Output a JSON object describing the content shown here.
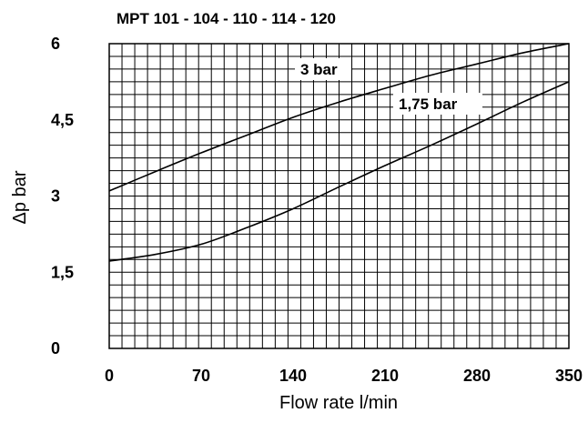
{
  "chart_data": {
    "type": "line",
    "title": "MPT 101 - 104 - 110 - 114 - 120",
    "xlabel": "Flow rate l/min",
    "ylabel": "Δp bar",
    "xlim": [
      0,
      350
    ],
    "ylim": [
      0,
      6
    ],
    "xticks": [
      "0",
      "70",
      "140",
      "210",
      "280",
      "350"
    ],
    "yticks": [
      "0",
      "1,5",
      "3",
      "4,5",
      "6"
    ],
    "grid": true,
    "series": [
      {
        "name": "3 bar",
        "x": [
          0,
          35,
          70,
          105,
          140,
          175,
          210,
          245,
          280,
          315,
          350
        ],
        "y": [
          3.1,
          3.48,
          3.85,
          4.2,
          4.55,
          4.85,
          5.12,
          5.38,
          5.6,
          5.82,
          6.0
        ]
      },
      {
        "name": "1,75 bar",
        "x": [
          0,
          35,
          70,
          105,
          140,
          175,
          210,
          245,
          280,
          315,
          350
        ],
        "y": [
          1.72,
          1.85,
          2.05,
          2.38,
          2.75,
          3.18,
          3.6,
          4.0,
          4.42,
          4.85,
          5.25
        ]
      }
    ]
  }
}
